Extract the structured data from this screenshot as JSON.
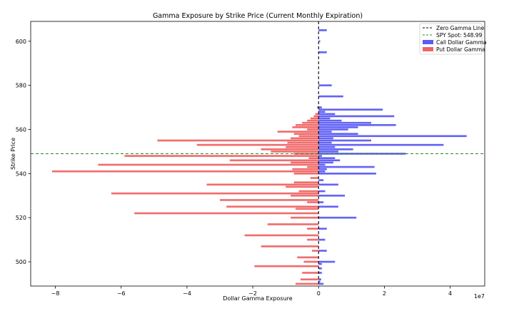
{
  "chart_data": {
    "type": "bar",
    "orientation": "horizontal",
    "title": "Gamma Exposure by Strike Price (Current Monthly Expiration)",
    "xlabel": "Dollar Gamma Exposure",
    "ylabel": "Strike Price",
    "x_offset_label": "1e7",
    "xlim": [
      -8.75,
      5.05
    ],
    "ylim": [
      489,
      609
    ],
    "x_ticks": [
      -8,
      -6,
      -4,
      -2,
      0,
      2,
      4
    ],
    "x_tick_labels": [
      "−8",
      "−6",
      "−4",
      "−2",
      "0",
      "2",
      "4"
    ],
    "y_ticks": [
      500,
      520,
      540,
      560,
      580,
      600
    ],
    "grid": false,
    "legend_position": "top-right",
    "zero_gamma_line": 0,
    "spy_spot": 548.99,
    "colors": {
      "call": "#5b5bf5",
      "put": "#f06464",
      "zero_line": "#000000",
      "spot_line": "#1e8c1e"
    },
    "legend": [
      {
        "label": "Zero Gamma Line",
        "kind": "line",
        "color": "#000000"
      },
      {
        "label": "SPY Spot: 548.99",
        "kind": "line",
        "color": "#1e8c1e"
      },
      {
        "label": "Call Dollar Gamma",
        "kind": "bar",
        "color": "#5b5bf5"
      },
      {
        "label": "Put Dollar Gamma",
        "kind": "bar",
        "color": "#f06464"
      }
    ],
    "series": [
      {
        "name": "Call Dollar Gamma",
        "strikes": [
          490,
          491,
          492,
          495,
          497,
          499,
          500,
          505,
          510,
          515,
          520,
          525,
          527,
          530,
          532,
          535,
          537,
          540,
          541,
          542,
          543,
          544,
          545,
          546,
          547,
          548,
          549,
          550,
          551,
          552,
          553,
          554,
          555,
          556,
          557,
          558,
          559,
          560,
          561,
          562,
          563,
          564,
          565,
          566,
          567,
          568,
          569,
          570,
          575,
          580,
          595,
          600,
          605
        ],
        "values": [
          0.15,
          0.05,
          0.08,
          0.1,
          0.1,
          0.1,
          0.5,
          0.25,
          0.2,
          0.25,
          1.15,
          0.6,
          0.15,
          0.8,
          0.2,
          0.6,
          0.15,
          1.75,
          0.2,
          0.25,
          1.7,
          0.2,
          0.45,
          0.65,
          0.5,
          0.1,
          2.65,
          0.6,
          1.05,
          0.5,
          3.8,
          0.4,
          1.6,
          0.45,
          4.5,
          1.2,
          0.4,
          0.9,
          1.2,
          2.35,
          1.6,
          0.7,
          0.35,
          2.3,
          0.5,
          0.2,
          1.95,
          0.1,
          0.75,
          0.4,
          0.25,
          0.05,
          0.25
        ]
      },
      {
        "name": "Put Dollar Gamma",
        "strikes": [
          490,
          492,
          495,
          498,
          500,
          502,
          505,
          507,
          510,
          512,
          515,
          517,
          520,
          522,
          524,
          525,
          527,
          528,
          530,
          531,
          532,
          534,
          535,
          536,
          538,
          540,
          541,
          542,
          543,
          544,
          545,
          546,
          547,
          548,
          549,
          550,
          551,
          552,
          553,
          554,
          555,
          556,
          557,
          558,
          559,
          560,
          561,
          562,
          563,
          564,
          565,
          566,
          567,
          570
        ],
        "values": [
          -0.7,
          -0.55,
          -0.5,
          -1.95,
          -0.45,
          -0.65,
          -0.2,
          -1.75,
          -0.35,
          -2.25,
          -0.35,
          -1.55,
          -0.85,
          -5.6,
          -0.7,
          -2.8,
          -0.35,
          -3.0,
          -0.85,
          -6.3,
          -0.6,
          -1.0,
          -3.4,
          -0.75,
          -0.25,
          -0.75,
          -8.1,
          -0.8,
          -0.35,
          -6.7,
          -0.85,
          -2.7,
          -0.3,
          -5.9,
          -0.75,
          -1.45,
          -1.75,
          -1.0,
          -3.7,
          -0.95,
          -4.9,
          -0.85,
          -0.6,
          -0.75,
          -1.25,
          -0.35,
          -0.8,
          -0.7,
          -0.5,
          -0.35,
          -0.25,
          -0.15,
          -0.1,
          -0.05
        ]
      }
    ]
  }
}
